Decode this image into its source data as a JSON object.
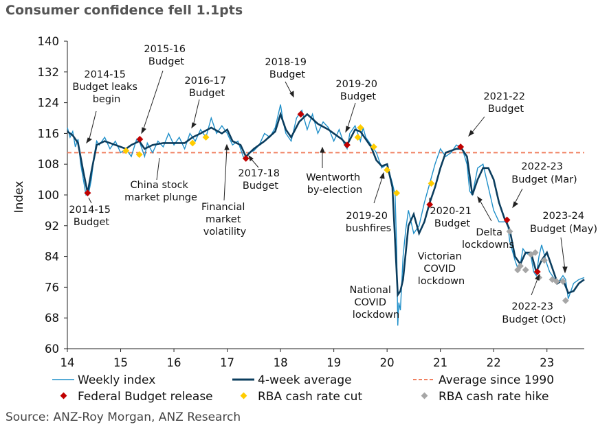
{
  "chart_data": {
    "type": "line",
    "title": "Consumer confidence fell 1.1pts",
    "source": "Source: ANZ-Roy Morgan, ANZ Research",
    "xlabel": "",
    "ylabel": "Index",
    "xlim": [
      14,
      23.7
    ],
    "ylim": [
      60,
      140
    ],
    "yticks": [
      60,
      68,
      76,
      84,
      92,
      100,
      108,
      116,
      124,
      132,
      140
    ],
    "xticks": [
      14,
      15,
      16,
      17,
      18,
      19,
      20,
      21,
      22,
      23
    ],
    "grid": false,
    "legend_position": "bottom",
    "legend": {
      "weekly": "Weekly index",
      "avg4": "4-week average",
      "avg1990": "Average since 1990",
      "budget": "Federal Budget release",
      "cut": "RBA cash rate cut",
      "hike": "RBA cash rate hike"
    },
    "colors": {
      "weekly": "#1f8fc9",
      "avg4": "#0b3d5e",
      "avg1990": "#f08060",
      "budget": "#c00000",
      "cut": "#ffcc00",
      "hike": "#a6a6a6"
    },
    "average_since_1990": 111,
    "series": [
      {
        "name": "4-week average",
        "x": [
          14.0,
          14.1,
          14.2,
          14.3,
          14.38,
          14.45,
          14.55,
          14.7,
          14.9,
          15.0,
          15.1,
          15.2,
          15.35,
          15.45,
          15.6,
          15.8,
          16.0,
          16.2,
          16.35,
          16.5,
          16.7,
          16.9,
          17.0,
          17.1,
          17.25,
          17.35,
          17.5,
          17.7,
          17.9,
          18.0,
          18.1,
          18.2,
          18.35,
          18.5,
          18.7,
          18.9,
          19.0,
          19.15,
          19.25,
          19.4,
          19.5,
          19.6,
          19.7,
          19.8,
          19.9,
          20.0,
          20.1,
          20.15,
          20.2,
          20.25,
          20.3,
          20.4,
          20.5,
          20.6,
          20.7,
          20.8,
          20.9,
          21.0,
          21.1,
          21.2,
          21.3,
          21.4,
          21.5,
          21.6,
          21.7,
          21.8,
          21.9,
          22.0,
          22.1,
          22.2,
          22.3,
          22.4,
          22.5,
          22.6,
          22.7,
          22.8,
          22.9,
          23.0,
          23.1,
          23.2,
          23.3,
          23.4,
          23.5,
          23.6,
          23.7
        ],
        "y": [
          116.5,
          115.5,
          113.5,
          106,
          100.5,
          106,
          113,
          114,
          113,
          112.5,
          112,
          113,
          114,
          112,
          113,
          113.5,
          113.5,
          113.5,
          115,
          116,
          117.5,
          116,
          117,
          114,
          113,
          110,
          112,
          114,
          116.5,
          121,
          117,
          115,
          119,
          121,
          118.5,
          117,
          116,
          114.5,
          113,
          117,
          116.5,
          114.5,
          112.5,
          109,
          107.5,
          108,
          102,
          88,
          74,
          75,
          78,
          92,
          95,
          90,
          93,
          98,
          102,
          107,
          111,
          111.5,
          112,
          112,
          110,
          100,
          104,
          107,
          107,
          104,
          98,
          94,
          91,
          84,
          82,
          85,
          85,
          80,
          83,
          85,
          81,
          77,
          78,
          74.5,
          75,
          77,
          78
        ]
      },
      {
        "name": "Weekly index",
        "x": [
          14.0,
          14.05,
          14.1,
          14.15,
          14.2,
          14.25,
          14.3,
          14.35,
          14.4,
          14.45,
          14.5,
          14.55,
          14.6,
          14.7,
          14.8,
          14.9,
          15.0,
          15.1,
          15.2,
          15.3,
          15.35,
          15.4,
          15.45,
          15.5,
          15.6,
          15.7,
          15.8,
          15.9,
          16.0,
          16.1,
          16.2,
          16.3,
          16.4,
          16.5,
          16.6,
          16.7,
          16.8,
          16.9,
          17.0,
          17.1,
          17.2,
          17.3,
          17.35,
          17.4,
          17.5,
          17.6,
          17.7,
          17.8,
          17.9,
          18.0,
          18.05,
          18.1,
          18.2,
          18.3,
          18.35,
          18.4,
          18.5,
          18.6,
          18.7,
          18.8,
          18.9,
          19.0,
          19.1,
          19.2,
          19.25,
          19.3,
          19.4,
          19.5,
          19.55,
          19.6,
          19.7,
          19.8,
          19.9,
          20.0,
          20.1,
          20.15,
          20.18,
          20.2,
          20.22,
          20.25,
          20.3,
          20.35,
          20.4,
          20.5,
          20.6,
          20.7,
          20.8,
          20.9,
          21.0,
          21.1,
          21.2,
          21.3,
          21.4,
          21.5,
          21.55,
          21.6,
          21.7,
          21.8,
          21.9,
          22.0,
          22.1,
          22.2,
          22.25,
          22.3,
          22.4,
          22.45,
          22.5,
          22.55,
          22.6,
          22.7,
          22.75,
          22.8,
          22.85,
          22.9,
          23.0,
          23.05,
          23.1,
          23.2,
          23.3,
          23.35,
          23.4,
          23.5,
          23.6,
          23.7
        ],
        "y": [
          117.5,
          115,
          116.5,
          112.5,
          114.5,
          108,
          104,
          100,
          100.5,
          104,
          110,
          114,
          113,
          115,
          112,
          114,
          111,
          112,
          110,
          114.5,
          114,
          112,
          110,
          113.5,
          111,
          114,
          112.5,
          116,
          113,
          115,
          112,
          116,
          114,
          117,
          115,
          120,
          116,
          118,
          116,
          113,
          114,
          110,
          109,
          111,
          111.5,
          113,
          116,
          115,
          117.5,
          123.5,
          119,
          116,
          114,
          120,
          121,
          122,
          117,
          121,
          116,
          119,
          117.5,
          114,
          117,
          113,
          112,
          116,
          118,
          114,
          117.5,
          115,
          113,
          111,
          107,
          108,
          103,
          100,
          86,
          66,
          72,
          70,
          84,
          91,
          96,
          90,
          92,
          98,
          103,
          108,
          112,
          110,
          111,
          113,
          112.5,
          108,
          101,
          100,
          107,
          108,
          102,
          96,
          93,
          93,
          94,
          88,
          83,
          81,
          82,
          86,
          85,
          84,
          80,
          79,
          84,
          87,
          82,
          80,
          79,
          77,
          79,
          78,
          73,
          77,
          78,
          78.5
        ]
      }
    ],
    "markers": {
      "budget": [
        [
          14.38,
          100.5
        ],
        [
          15.36,
          114.5
        ],
        [
          17.35,
          109.5
        ],
        [
          18.38,
          121
        ],
        [
          19.25,
          113
        ],
        [
          20.8,
          97.5
        ],
        [
          21.38,
          112.5
        ],
        [
          22.25,
          93.5
        ],
        [
          22.82,
          80
        ]
      ],
      "cut": [
        [
          15.1,
          111.5
        ],
        [
          15.35,
          110.5
        ],
        [
          16.35,
          113.5
        ],
        [
          16.6,
          115
        ],
        [
          19.45,
          115
        ],
        [
          19.5,
          117.5
        ],
        [
          19.75,
          112.5
        ],
        [
          20.0,
          106.5
        ],
        [
          20.18,
          100.5
        ],
        [
          20.83,
          103
        ]
      ],
      "hike": [
        [
          22.3,
          90.5
        ],
        [
          22.45,
          80.5
        ],
        [
          22.5,
          81.5
        ],
        [
          22.6,
          80.5
        ],
        [
          22.7,
          84.5
        ],
        [
          22.78,
          85
        ],
        [
          22.85,
          78.5
        ],
        [
          22.95,
          83
        ],
        [
          23.1,
          78
        ],
        [
          23.18,
          77.5
        ],
        [
          23.35,
          72.5
        ],
        [
          23.3,
          77.5
        ]
      ]
    },
    "annotations": {
      "b1415_leaks": [
        "2014-15",
        "Budget leaks",
        "begin"
      ],
      "b1516": [
        "2015-16",
        "Budget"
      ],
      "b1617": [
        "2016-17",
        "Budget"
      ],
      "b1819": [
        "2018-19",
        "Budget"
      ],
      "b1920": [
        "2019-20",
        "Budget"
      ],
      "b2122": [
        "2021-22",
        "Budget"
      ],
      "b1415": [
        "2014-15",
        "Budget"
      ],
      "china": [
        "China stock",
        "market plunge"
      ],
      "financial": [
        "Financial",
        "market",
        "volatility"
      ],
      "b1718": [
        "2017-18",
        "Budget"
      ],
      "wentworth": [
        "Wentworth",
        "by-election"
      ],
      "bushfires": [
        "2019-20",
        "bushfires"
      ],
      "national": [
        "National",
        "COVID",
        "lockdown"
      ],
      "victorian": [
        "Victorian",
        "COVID",
        "lockdown"
      ],
      "b2021": [
        "2020-21",
        "Budget"
      ],
      "delta": [
        "Delta",
        "lockdowns"
      ],
      "b2223mar": [
        "2022-23",
        "Budget (Mar)"
      ],
      "b2324may": [
        "2023-24",
        "Budget (May)"
      ],
      "b2223oct": [
        "2022-23",
        "Budget (Oct)"
      ]
    }
  }
}
